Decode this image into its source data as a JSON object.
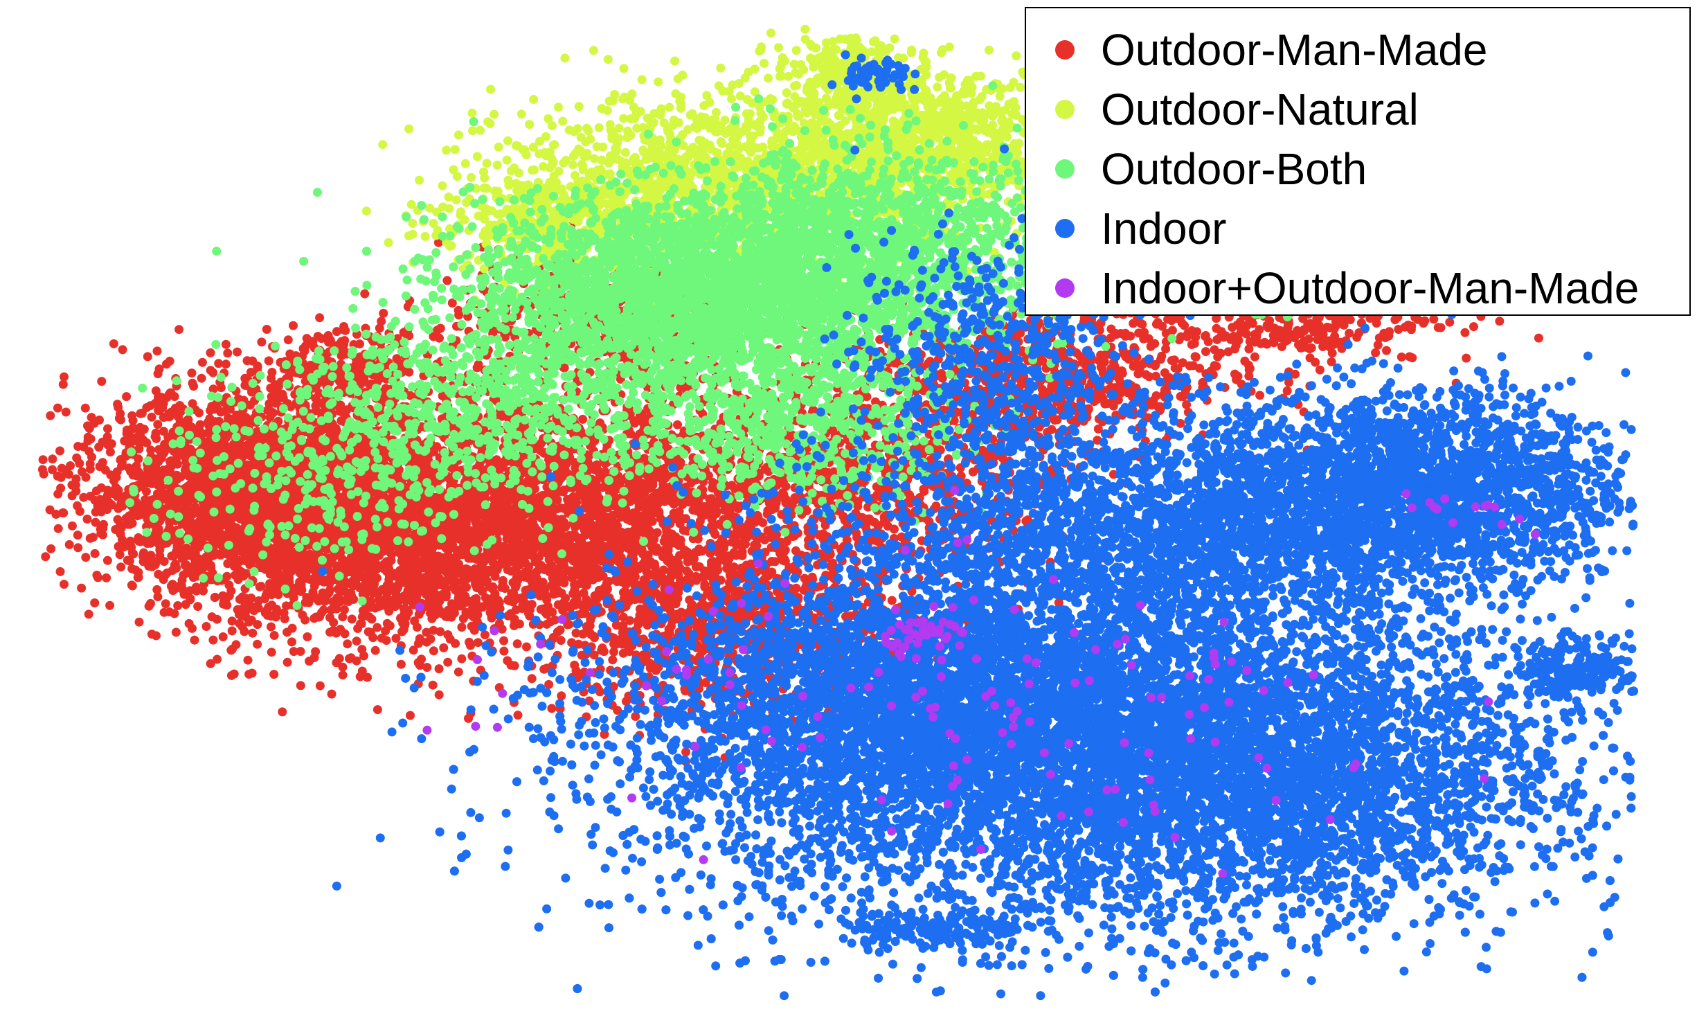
{
  "chart_data": {
    "type": "scatter",
    "title": "",
    "xlabel": "",
    "ylabel": "",
    "axes_visible": false,
    "grid": false,
    "legend": {
      "placement": "top-right",
      "entries": [
        {
          "label": "Outdoor-Man-Made",
          "color": "#e8302a"
        },
        {
          "label": "Outdoor-Natural",
          "color": "#d4f744"
        },
        {
          "label": "Outdoor-Both",
          "color": "#6ef77a"
        },
        {
          "label": "Indoor",
          "color": "#1d6ef1"
        },
        {
          "label": "Indoor+Outdoor-Man-Made",
          "color": "#b23af0"
        }
      ]
    },
    "series": [
      {
        "name": "Outdoor-Man-Made",
        "color": "#e8302a",
        "clusters": [
          {
            "x": -0.72,
            "y": 0.05,
            "sx": 0.12,
            "sy": 0.1,
            "n": 2600
          },
          {
            "x": -0.55,
            "y": -0.05,
            "sx": 0.14,
            "sy": 0.12,
            "n": 2200
          },
          {
            "x": -0.3,
            "y": 0.02,
            "sx": 0.14,
            "sy": 0.12,
            "n": 1600
          },
          {
            "x": -0.15,
            "y": -0.22,
            "sx": 0.12,
            "sy": 0.1,
            "n": 1000
          },
          {
            "x": 0.05,
            "y": 0.08,
            "sx": 0.12,
            "sy": 0.1,
            "n": 900
          },
          {
            "x": 0.25,
            "y": 0.28,
            "sx": 0.12,
            "sy": 0.07,
            "n": 700
          },
          {
            "x": 0.55,
            "y": 0.42,
            "sx": 0.1,
            "sy": 0.06,
            "n": 500
          },
          {
            "x": -0.3,
            "y": 0.38,
            "sx": 0.1,
            "sy": 0.08,
            "n": 400
          },
          {
            "x": -0.62,
            "y": 0.3,
            "sx": 0.06,
            "sy": 0.04,
            "n": 260
          }
        ]
      },
      {
        "name": "Outdoor-Natural",
        "color": "#d4f744",
        "clusters": [
          {
            "x": -0.12,
            "y": 0.68,
            "sx": 0.15,
            "sy": 0.09,
            "n": 1500
          },
          {
            "x": 0.1,
            "y": 0.78,
            "sx": 0.1,
            "sy": 0.07,
            "n": 900
          },
          {
            "x": -0.35,
            "y": 0.6,
            "sx": 0.08,
            "sy": 0.06,
            "n": 400
          },
          {
            "x": 0.0,
            "y": 0.92,
            "sx": 0.04,
            "sy": 0.03,
            "n": 160
          },
          {
            "x": 0.55,
            "y": 0.52,
            "sx": 0.06,
            "sy": 0.04,
            "n": 220
          }
        ]
      },
      {
        "name": "Outdoor-Both",
        "color": "#6ef77a",
        "clusters": [
          {
            "x": -0.18,
            "y": 0.45,
            "sx": 0.14,
            "sy": 0.1,
            "n": 2800
          },
          {
            "x": 0.05,
            "y": 0.55,
            "sx": 0.12,
            "sy": 0.1,
            "n": 1300
          },
          {
            "x": -0.45,
            "y": 0.22,
            "sx": 0.14,
            "sy": 0.1,
            "n": 700
          },
          {
            "x": -0.05,
            "y": 0.18,
            "sx": 0.1,
            "sy": 0.08,
            "n": 600
          },
          {
            "x": -0.65,
            "y": 0.05,
            "sx": 0.1,
            "sy": 0.1,
            "n": 260
          },
          {
            "x": 0.55,
            "y": 0.48,
            "sx": 0.05,
            "sy": 0.03,
            "n": 200
          }
        ]
      },
      {
        "name": "Indoor",
        "color": "#1d6ef1",
        "clusters": [
          {
            "x": 0.3,
            "y": -0.5,
            "sx": 0.28,
            "sy": 0.18,
            "n": 7000
          },
          {
            "x": 0.1,
            "y": -0.38,
            "sx": 0.18,
            "sy": 0.12,
            "n": 2400
          },
          {
            "x": 0.72,
            "y": 0.05,
            "sx": 0.14,
            "sy": 0.1,
            "n": 2200
          },
          {
            "x": 0.4,
            "y": -0.05,
            "sx": 0.2,
            "sy": 0.12,
            "n": 2400
          },
          {
            "x": 0.55,
            "y": -0.55,
            "sx": 0.18,
            "sy": 0.14,
            "n": 1800
          },
          {
            "x": 0.18,
            "y": 0.32,
            "sx": 0.08,
            "sy": 0.12,
            "n": 500
          },
          {
            "x": 0.93,
            "y": -0.32,
            "sx": 0.04,
            "sy": 0.03,
            "n": 200
          },
          {
            "x": 0.12,
            "y": -0.86,
            "sx": 0.06,
            "sy": 0.02,
            "n": 150
          },
          {
            "x": 0.05,
            "y": 0.9,
            "sx": 0.02,
            "sy": 0.02,
            "n": 60
          }
        ]
      },
      {
        "name": "Indoor+Outdoor-Man-Made",
        "color": "#b23af0",
        "clusters": [
          {
            "x": 0.12,
            "y": -0.25,
            "sx": 0.03,
            "sy": 0.02,
            "n": 40
          },
          {
            "x": 0.25,
            "y": -0.45,
            "sx": 0.25,
            "sy": 0.15,
            "n": 110
          },
          {
            "x": 0.8,
            "y": 0.0,
            "sx": 0.05,
            "sy": 0.03,
            "n": 14
          },
          {
            "x": -0.3,
            "y": -0.3,
            "sx": 0.15,
            "sy": 0.1,
            "n": 22
          }
        ]
      }
    ],
    "xlim": [
      -1.0,
      1.0
    ],
    "ylim": [
      -1.0,
      1.0
    ]
  }
}
